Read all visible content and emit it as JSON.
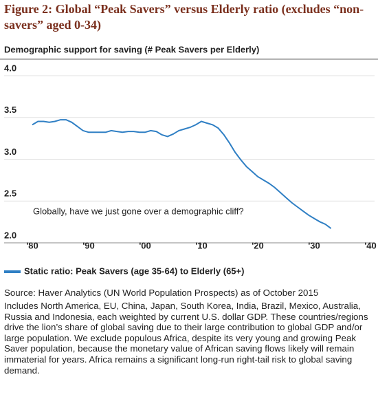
{
  "chart_data": {
    "type": "line",
    "title": "Figure 2: Global “Peak Savers” versus Elderly ratio (excludes “non-savers” aged 0-34)",
    "y_axis_title": "Demographic support for saving (# Peak Savers per Elderly)",
    "annotation": "Globally, have we just gone over a demographic cliff?",
    "x": [
      1980,
      1981,
      1982,
      1983,
      1984,
      1985,
      1986,
      1987,
      1988,
      1989,
      1990,
      1991,
      1992,
      1993,
      1994,
      1995,
      1996,
      1997,
      1998,
      1999,
      2000,
      2001,
      2002,
      2003,
      2004,
      2005,
      2006,
      2007,
      2008,
      2009,
      2010,
      2011,
      2012,
      2013,
      2014,
      2015,
      2016,
      2017,
      2018,
      2019,
      2020,
      2021,
      2022,
      2023,
      2024,
      2025,
      2026,
      2027,
      2028,
      2029,
      2030,
      2031,
      2032,
      2033
    ],
    "series": [
      {
        "name": "Static ratio: Peak Savers (age 35-64) to Elderly (65+)",
        "color": "#2f7fc4",
        "values": [
          3.33,
          3.37,
          3.37,
          3.36,
          3.37,
          3.39,
          3.39,
          3.36,
          3.31,
          3.26,
          3.24,
          3.24,
          3.24,
          3.24,
          3.26,
          3.25,
          3.24,
          3.25,
          3.25,
          3.24,
          3.24,
          3.26,
          3.25,
          3.21,
          3.19,
          3.22,
          3.26,
          3.28,
          3.3,
          3.33,
          3.37,
          3.35,
          3.33,
          3.29,
          3.21,
          3.11,
          3.0,
          2.91,
          2.83,
          2.77,
          2.71,
          2.67,
          2.63,
          2.58,
          2.52,
          2.46,
          2.4,
          2.35,
          2.3,
          2.25,
          2.21,
          2.17,
          2.14,
          2.09
        ]
      }
    ],
    "xlim": [
      1980,
      2040
    ],
    "xticks": [
      {
        "value": 1980,
        "label": "'80"
      },
      {
        "value": 1990,
        "label": "'90"
      },
      {
        "value": 2000,
        "label": "'00"
      },
      {
        "value": 2010,
        "label": "'10"
      },
      {
        "value": 2020,
        "label": "'20"
      },
      {
        "value": 2030,
        "label": "'30"
      },
      {
        "value": 2040,
        "label": "'40"
      }
    ],
    "ylim": [
      2.0,
      4.0
    ],
    "yticks": [
      {
        "value": 2.0,
        "label": "2.0"
      },
      {
        "value": 2.5,
        "label": "2.5"
      },
      {
        "value": 3.0,
        "label": "3.0"
      },
      {
        "value": 3.5,
        "label": "3.5"
      },
      {
        "value": 4.0,
        "label": "4.0"
      }
    ],
    "grid": true,
    "source": "Source: Haver Analytics (UN World Population Prospects) as of October 2015",
    "note": "Includes North America, EU, China, Japan, South Korea, India, Brazil, Mexico, Australia, Russia and Indonesia, each weighted by current U.S. dollar GDP. These countries/regions drive the lion’s share of global saving due to their large contribution to global GDP and/or large population. We exclude populous Africa, despite its very young and growing Peak Saver population, because the monetary value of African saving flows likely will remain immaterial for years. Africa remains a significant long-run right-tail risk to global saving demand."
  }
}
